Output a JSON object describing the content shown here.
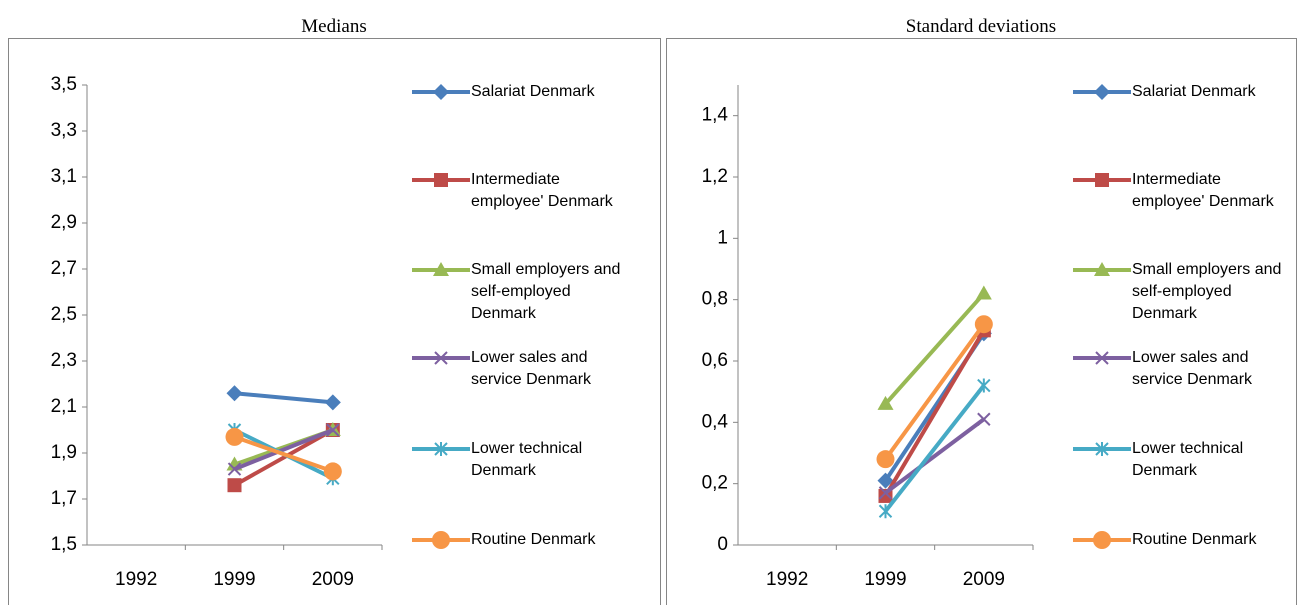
{
  "chart_data": [
    {
      "type": "line",
      "title": "Medians",
      "categories": [
        "1992",
        "1999",
        "2009"
      ],
      "ylim": [
        1.5,
        3.5
      ],
      "yticks": [
        {
          "value": 1.5,
          "label": "1,5"
        },
        {
          "value": 1.7,
          "label": "1,7"
        },
        {
          "value": 1.9,
          "label": "1,9"
        },
        {
          "value": 2.1,
          "label": "2,1"
        },
        {
          "value": 2.3,
          "label": "2,3"
        },
        {
          "value": 2.5,
          "label": "2,5"
        },
        {
          "value": 2.7,
          "label": "2,7"
        },
        {
          "value": 2.9,
          "label": "2,9"
        },
        {
          "value": 3.1,
          "label": "3,1"
        },
        {
          "value": 3.3,
          "label": "3,3"
        },
        {
          "value": 3.5,
          "label": "3,5"
        }
      ],
      "legend": "right",
      "series": [
        {
          "name": "Salariat Denmark",
          "color": "#4a7ebb",
          "marker": "diamond",
          "values": [
            null,
            2.16,
            2.12
          ]
        },
        {
          "name": "Intermediate employee' Denmark",
          "color": "#be4b48",
          "marker": "square",
          "values": [
            null,
            1.76,
            2.0
          ]
        },
        {
          "name": "Small employers and self-employed Denmark",
          "color": "#98b954",
          "marker": "triangle",
          "values": [
            null,
            1.85,
            2.0
          ]
        },
        {
          "name": "Lower sales and service Denmark",
          "color": "#7d60a0",
          "marker": "x",
          "values": [
            null,
            1.83,
            2.0
          ]
        },
        {
          "name": "Lower technical Denmark",
          "color": "#46aac5",
          "marker": "star",
          "values": [
            null,
            2.0,
            1.79
          ]
        },
        {
          "name": "Routine Denmark",
          "color": "#f79646",
          "marker": "circle",
          "values": [
            null,
            1.97,
            1.82
          ]
        }
      ]
    },
    {
      "type": "line",
      "title": "Standard deviations",
      "categories": [
        "1992",
        "1999",
        "2009"
      ],
      "ylim": [
        0,
        1.5
      ],
      "yticks": [
        0,
        {
          "value": 0.2,
          "label": "0,2"
        },
        {
          "value": 0.4,
          "label": "0,4"
        },
        {
          "value": 0.6,
          "label": "0,6"
        },
        {
          "value": 0.8,
          "label": "0,8"
        },
        1,
        {
          "value": 1.2,
          "label": "1,2"
        },
        {
          "value": 1.4,
          "label": "1,4"
        }
      ],
      "legend": "right",
      "series": [
        {
          "name": "Salariat Denmark",
          "color": "#4a7ebb",
          "marker": "diamond",
          "values": [
            null,
            0.21,
            0.69
          ]
        },
        {
          "name": "Intermediate employee' Denmark",
          "color": "#be4b48",
          "marker": "square",
          "values": [
            null,
            0.16,
            0.7
          ]
        },
        {
          "name": "Small employers and self-employed Denmark",
          "color": "#98b954",
          "marker": "triangle",
          "values": [
            null,
            0.46,
            0.82
          ]
        },
        {
          "name": "Lower sales and service Denmark",
          "color": "#7d60a0",
          "marker": "x",
          "values": [
            null,
            0.17,
            0.41
          ]
        },
        {
          "name": "Lower technical Denmark",
          "color": "#46aac5",
          "marker": "star",
          "values": [
            null,
            0.11,
            0.52
          ]
        },
        {
          "name": "Routine Denmark",
          "color": "#f79646",
          "marker": "circle",
          "values": [
            null,
            0.28,
            0.72
          ]
        }
      ]
    }
  ]
}
